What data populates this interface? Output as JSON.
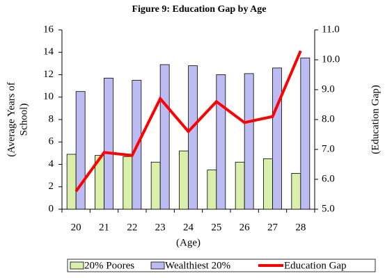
{
  "chart_data": {
    "type": "bar_line",
    "title": "Figure 9: Education Gap by Age",
    "categories": [
      "20",
      "21",
      "22",
      "23",
      "24",
      "25",
      "26",
      "27",
      "28"
    ],
    "xlabel": "(Age)",
    "ylabel": [
      "(Average Years of",
      "School)"
    ],
    "y2label": "(Education Gap)",
    "ylim": [
      0,
      16
    ],
    "yticks": [
      0,
      2,
      4,
      6,
      8,
      10,
      12,
      14,
      16
    ],
    "y2lim": [
      5,
      11
    ],
    "y2ticks": [
      {
        "value": 5,
        "label": "5.0"
      },
      {
        "value": 6,
        "label": "6.0"
      },
      {
        "value": 7,
        "label": "7.0"
      },
      {
        "value": 8,
        "label": "8.0"
      },
      {
        "value": 9,
        "label": "9.0"
      },
      {
        "value": 10,
        "label": "10.0"
      },
      {
        "value": 11,
        "label": "11.0"
      }
    ],
    "series": [
      {
        "name": "20% Poores",
        "color": "#d9efaa",
        "type": "bar",
        "values": [
          4.9,
          4.8,
          4.7,
          4.2,
          5.2,
          3.5,
          4.2,
          4.5,
          3.2
        ]
      },
      {
        "name": "Wealthiest 20%",
        "color": "#bcbcf2",
        "type": "bar",
        "values": [
          10.5,
          11.7,
          11.5,
          12.9,
          12.8,
          12.0,
          12.1,
          12.6,
          13.5
        ]
      },
      {
        "name": "Education Gap",
        "color": "#ff0000",
        "type": "line",
        "axis": "y2",
        "values": [
          5.6,
          6.9,
          6.8,
          8.7,
          7.6,
          8.6,
          7.9,
          8.1,
          10.3
        ]
      }
    ],
    "legend": "bottom"
  }
}
